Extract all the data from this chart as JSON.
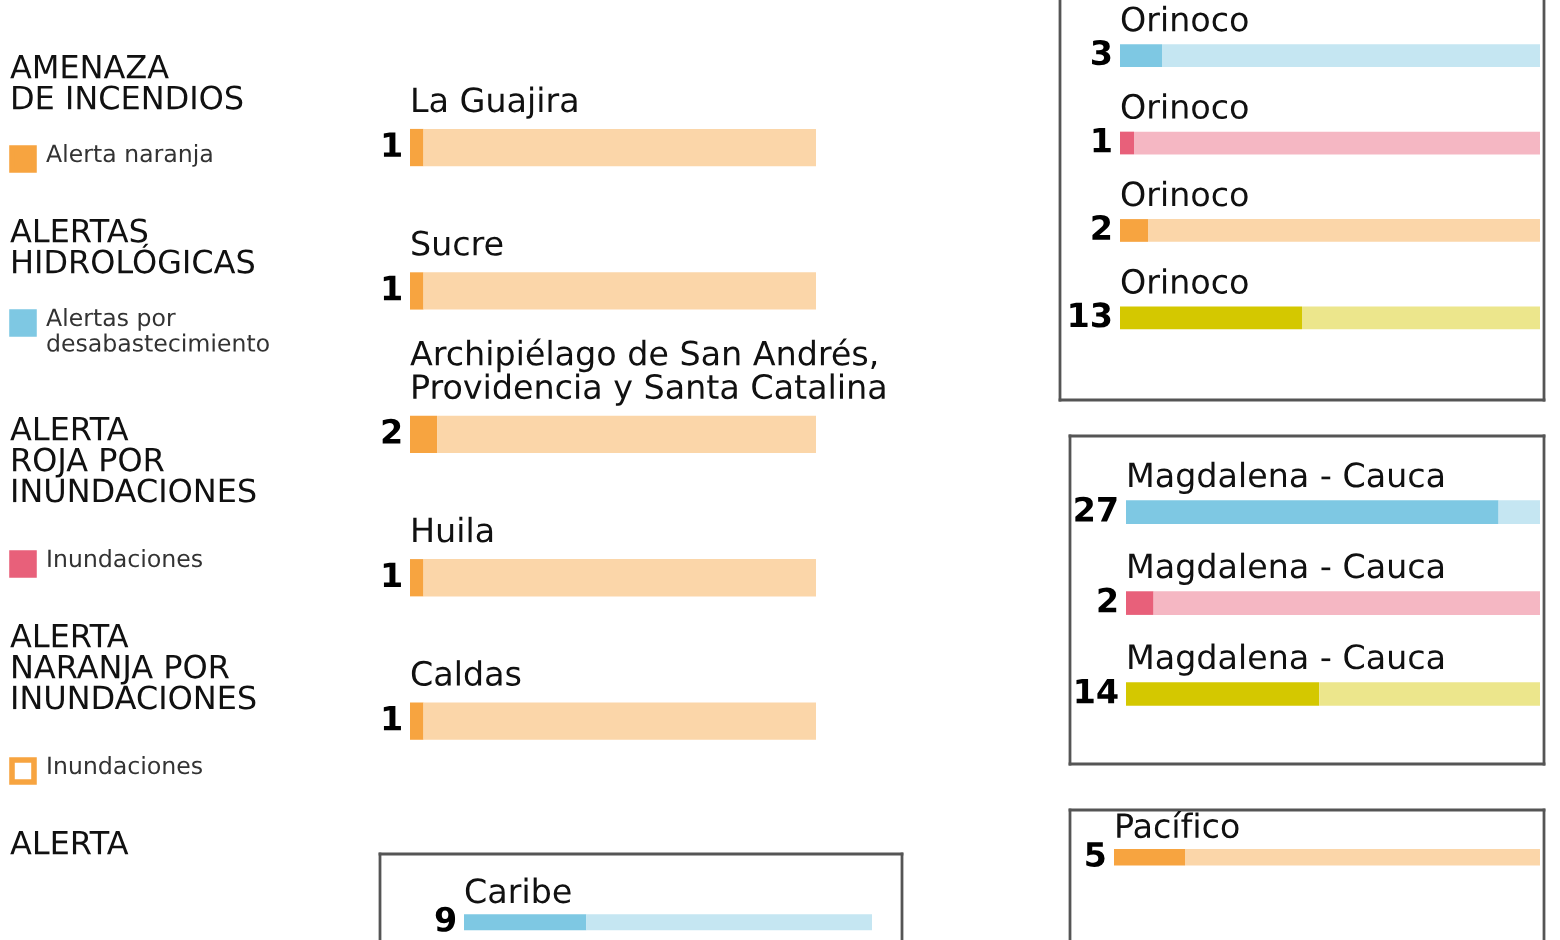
{
  "chart_data": [
    {
      "type": "other",
      "annotations": [
        "AMENAZA\nDE INCENDIOS",
        "ALERTAS\nHIDROLÓGICAS",
        "ALERTA\nROJA POR\nINUNDACIONES",
        "ALERTA\nNARANJA POR\nINUNDACIONES",
        "ALERTA"
      ],
      "categories": [
        "Alerta naranja",
        "Alertas por\ndesabastecimiento",
        "Inundaciones",
        "Inundaciones"
      ],
      "colors": [
        "#f7a440",
        "#7ec8e3",
        "#e8607a",
        "#ffffff"
      ]
    },
    {
      "type": "bar",
      "orientation": "horizontal",
      "stacked": true,
      "categories": [
        "La Guajira",
        "Sucre",
        "Archipiélago de San Andrés,\nProvidencia y Santa Catalina",
        "Huila",
        "Caldas"
      ],
      "series": [
        {
          "colors": [
            "#f7a440",
            "#f7a440",
            "#f7a440",
            "#f7a440",
            "#f7a440"
          ],
          "values": [
            1,
            1,
            2,
            1,
            1
          ],
          "data_labels": true
        },
        {
          "colors": [
            "#fbd6a9",
            "#fbd6a9",
            "#fbd6a9",
            "#fbd6a9",
            "#fbd6a9"
          ],
          "values": [
            29,
            29,
            28,
            29,
            29
          ]
        }
      ],
      "xlim": [
        0,
        30
      ]
    },
    {
      "type": "bar",
      "orientation": "horizontal",
      "stacked": true,
      "categories": [
        "Caribe"
      ],
      "series": [
        {
          "colors": [
            "#7ec8e3"
          ],
          "values": [
            9
          ],
          "data_labels": true
        },
        {
          "colors": [
            "#c5e6f2"
          ],
          "values": [
            21
          ]
        }
      ],
      "xlim": [
        0,
        30
      ]
    },
    {
      "type": "bar",
      "orientation": "horizontal",
      "stacked": true,
      "categories": [
        "Orinoco",
        "Orinoco",
        "Orinoco",
        "Orinoco"
      ],
      "series": [
        {
          "colors": [
            "#7ec8e3",
            "#e8607a",
            "#f7a440",
            "#d4c800"
          ],
          "values": [
            3,
            1,
            2,
            13
          ],
          "data_labels": true
        },
        {
          "colors": [
            "#c5e6f2",
            "#f5b7c3",
            "#fbd6a9",
            "#ece68c"
          ],
          "values": [
            27,
            29,
            28,
            17
          ]
        }
      ],
      "xlim": [
        0,
        30
      ]
    },
    {
      "type": "bar",
      "orientation": "horizontal",
      "stacked": true,
      "categories": [
        "Magdalena - Cauca",
        "Magdalena - Cauca",
        "Magdalena - Cauca"
      ],
      "series": [
        {
          "colors": [
            "#7ec8e3",
            "#e8607a",
            "#d4c800"
          ],
          "values": [
            27,
            2,
            14
          ],
          "data_labels": true
        },
        {
          "colors": [
            "#c5e6f2",
            "#f5b7c3",
            "#ece68c"
          ],
          "values": [
            3,
            28,
            16
          ]
        }
      ],
      "xlim": [
        0,
        30
      ]
    },
    {
      "type": "bar",
      "orientation": "horizontal",
      "stacked": true,
      "categories": [
        "Pacífico"
      ],
      "series": [
        {
          "colors": [
            "#f7a440"
          ],
          "values": [
            5
          ],
          "data_labels": true
        },
        {
          "colors": [
            "#fbd6a9"
          ],
          "values": [
            25
          ]
        }
      ],
      "xlim": [
        0,
        30
      ]
    }
  ]
}
